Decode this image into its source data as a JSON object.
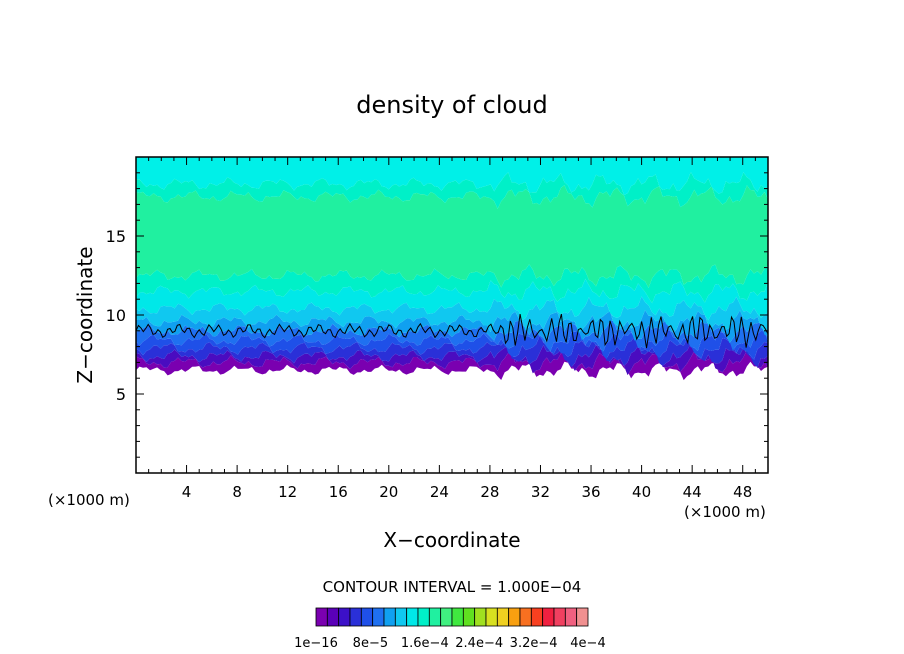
{
  "chart_data": {
    "type": "heatmap",
    "title": "density of cloud",
    "xlabel": "X−coordinate",
    "ylabel": "Z−coordinate",
    "x_unit_left": "(×1000 m)",
    "x_unit_right": "(×1000 m)",
    "xlim": [
      0,
      50
    ],
    "ylim": [
      0,
      20
    ],
    "x_ticks": [
      4,
      8,
      12,
      16,
      20,
      24,
      28,
      32,
      36,
      40,
      44,
      48
    ],
    "y_ticks": [
      5,
      10,
      15
    ],
    "contour_interval_text": "CONTOUR INTERVAL = 1.000E−04",
    "colorbar": {
      "labels": [
        "1e−16",
        "8e−5",
        "1.6e−4",
        "2.4e−4",
        "3.2e−4",
        "4e−4"
      ],
      "colors": [
        "#7a00b0",
        "#5a00b8",
        "#3c10c8",
        "#2a30d8",
        "#1f50e8",
        "#1f70f0",
        "#10a0f0",
        "#10c8f0",
        "#00e8e8",
        "#00f0c8",
        "#20f0a0",
        "#40f080",
        "#40e840",
        "#60e020",
        "#a0e020",
        "#d8e020",
        "#f0d020",
        "#f8a010",
        "#f87020",
        "#f84020",
        "#f02040",
        "#f04060",
        "#f06080",
        "#f09090"
      ]
    },
    "cloud_layer": {
      "base_z": 6.5,
      "contour_z": 9.0,
      "top_z": 20.0,
      "bands": [
        {
          "z0": 6.5,
          "z1": 7.0,
          "color": "#7a00b0"
        },
        {
          "z0": 7.0,
          "z1": 7.4,
          "color": "#4a0cc0"
        },
        {
          "z0": 7.4,
          "z1": 7.9,
          "color": "#2a30d8"
        },
        {
          "z0": 7.9,
          "z1": 8.4,
          "color": "#1f50e8"
        },
        {
          "z0": 8.4,
          "z1": 9.0,
          "color": "#1f70f0"
        },
        {
          "z0": 9.0,
          "z1": 9.6,
          "color": "#10a0f0"
        },
        {
          "z0": 9.6,
          "z1": 10.4,
          "color": "#10c8f0"
        },
        {
          "z0": 10.4,
          "z1": 11.5,
          "color": "#00e8e8"
        },
        {
          "z0": 11.5,
          "z1": 12.5,
          "color": "#00f0c8"
        },
        {
          "z0": 12.5,
          "z1": 17.5,
          "color": "#20f0a0"
        },
        {
          "z0": 17.5,
          "z1": 18.3,
          "color": "#00f0c8"
        },
        {
          "z0": 18.3,
          "z1": 20.0,
          "color": "#00f0e8"
        }
      ]
    }
  }
}
